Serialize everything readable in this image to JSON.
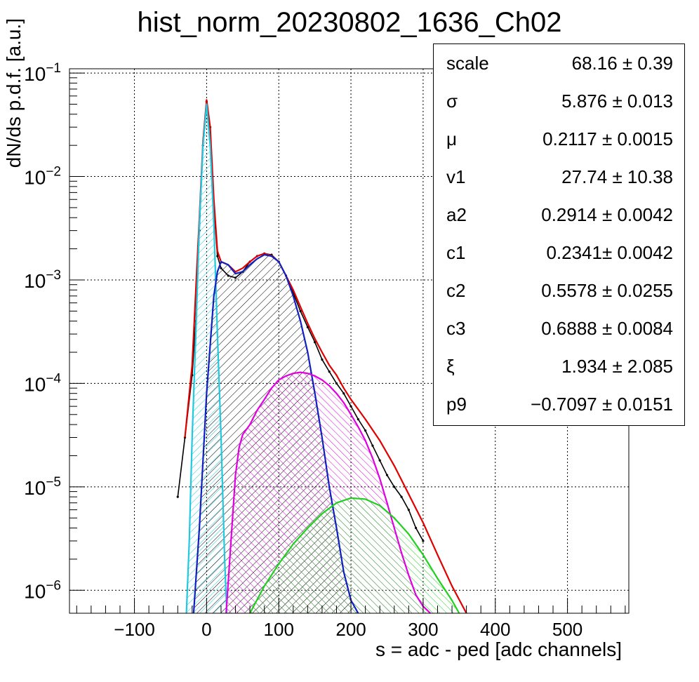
{
  "title": "hist_norm_20230802_1636_Ch02",
  "xlabel": "s = adc - ped [adc channels]",
  "ylabel": "dN/ds p.d.f. [a.u.]",
  "stats": [
    {
      "key": "scale",
      "value": "68.16 ± 0.39"
    },
    {
      "key": "σ",
      "value": "5.876 ± 0.013"
    },
    {
      "key": "μ",
      "value": "0.2117 ± 0.0015"
    },
    {
      "key": "v1",
      "value": "27.74 ± 10.38"
    },
    {
      "key": "a2",
      "value": "0.2914 ± 0.0042"
    },
    {
      "key": "c1",
      "value": "0.2341± 0.0042"
    },
    {
      "key": "c2",
      "value": "0.5578 ± 0.0255"
    },
    {
      "key": "c3",
      "value": "0.6888 ± 0.0084"
    },
    {
      "key": "ξ",
      "value": "1.934 ± 2.085"
    },
    {
      "key": "p9",
      "value": "−0.7097 ± 0.0151"
    }
  ],
  "chart_data": {
    "type": "line",
    "yscale": "log",
    "xlim": [
      -190,
      585
    ],
    "ylim": [
      6e-07,
      0.11
    ],
    "grid": true,
    "x_ticks": [
      -100,
      0,
      100,
      200,
      300,
      400,
      500
    ],
    "x_tick_labels": [
      "−100",
      "0",
      "100",
      "200",
      "300",
      "400",
      "500"
    ],
    "y_ticks": [
      1e-06,
      1e-05,
      0.0001,
      0.001,
      0.01,
      0.1
    ],
    "y_tick_labels": [
      [
        "10",
        "−6"
      ],
      [
        "10",
        "−5"
      ],
      [
        "10",
        "−4"
      ],
      [
        "10",
        "−3"
      ],
      [
        "10",
        "−2"
      ],
      [
        "10",
        "−1"
      ]
    ],
    "colors": {
      "data": "#000000",
      "total": "#e00000",
      "pedestal": "#20c8e0",
      "pe1": "#1020c0",
      "pe2": "#e000e0",
      "pe3": "#20d020"
    },
    "histogram": {
      "x": [
        -40,
        -30,
        -20,
        -15,
        -10,
        -5,
        0,
        5,
        10,
        15,
        20,
        30,
        40,
        50,
        60,
        70,
        80,
        90,
        100,
        110,
        120,
        130,
        140,
        150,
        160,
        170,
        180,
        190,
        200,
        210,
        220,
        230,
        240,
        250,
        260,
        270,
        280,
        290,
        300
      ],
      "y": [
        8e-06,
        3e-05,
        0.00012,
        0.0004,
        0.003,
        0.02,
        0.053,
        0.03,
        0.005,
        0.0017,
        0.0013,
        0.0011,
        0.00105,
        0.0012,
        0.0015,
        0.0017,
        0.0018,
        0.00175,
        0.0015,
        0.0011,
        0.00075,
        0.0005,
        0.00035,
        0.00025,
        0.00017,
        0.00013,
        0.0001,
        8e-05,
        6e-05,
        4.5e-05,
        3.5e-05,
        2.5e-05,
        1.8e-05,
        1.3e-05,
        1e-05,
        8e-06,
        6e-06,
        4e-06,
        3e-06
      ]
    },
    "series": [
      {
        "component": "total",
        "x": [
          -30,
          -20,
          -10,
          -5,
          0,
          5,
          10,
          15,
          20,
          30,
          40,
          50,
          60,
          70,
          80,
          90,
          100,
          110,
          120,
          130,
          140,
          150,
          160,
          170,
          180,
          190,
          200,
          220,
          240,
          260,
          280,
          300,
          320,
          340,
          360
        ],
        "y": [
          3e-05,
          0.00015,
          0.004,
          0.022,
          0.055,
          0.03,
          0.006,
          0.0019,
          0.0015,
          0.0014,
          0.0012,
          0.0013,
          0.0015,
          0.0017,
          0.0018,
          0.00172,
          0.0015,
          0.0011,
          0.0008,
          0.00055,
          0.00038,
          0.00027,
          0.0002,
          0.00015,
          0.00012,
          9e-05,
          7e-05,
          4.5e-05,
          2.8e-05,
          1.6e-05,
          8.5e-06,
          4.5e-06,
          2.2e-06,
          1.1e-06,
          5.5e-07
        ]
      },
      {
        "component": "pedestal",
        "x": [
          -28,
          -24,
          -20,
          -15,
          -10,
          -5,
          0,
          5,
          10,
          15,
          20,
          25,
          28
        ],
        "y": [
          6e-07,
          3e-06,
          3e-05,
          0.0003,
          0.0035,
          0.02,
          0.05,
          0.02,
          0.0035,
          0.0003,
          3e-05,
          2e-06,
          6e-07
        ]
      },
      {
        "component": "pe1",
        "x": [
          -18,
          -10,
          0,
          10,
          15,
          20,
          30,
          40,
          50,
          60,
          70,
          80,
          90,
          100,
          110,
          120,
          130,
          140,
          150,
          160,
          170,
          180,
          190,
          200,
          210
        ],
        "y": [
          6e-07,
          4e-06,
          8e-05,
          0.0007,
          0.0012,
          0.0015,
          0.0014,
          0.00115,
          0.0012,
          0.0014,
          0.0016,
          0.00175,
          0.0017,
          0.0015,
          0.0011,
          0.0007,
          0.0004,
          0.0002,
          8e-05,
          3e-05,
          1e-05,
          4e-06,
          1.5e-06,
          8e-07,
          6e-07
        ]
      },
      {
        "component": "pe2",
        "x": [
          27,
          30,
          35,
          40,
          45,
          50,
          60,
          70,
          80,
          90,
          100,
          110,
          120,
          130,
          140,
          150,
          160,
          170,
          180,
          190,
          200,
          210,
          220,
          230,
          240,
          250,
          260,
          270,
          280,
          290,
          300,
          310
        ],
        "y": [
          6e-07,
          1.2e-06,
          4e-06,
          1.3e-05,
          2.4e-05,
          3.2e-05,
          4e-05,
          5.5e-05,
          7e-05,
          9e-05,
          0.000108,
          0.000118,
          0.000125,
          0.000128,
          0.000125,
          0.000118,
          0.000108,
          9.5e-05,
          8e-05,
          6.5e-05,
          5e-05,
          3.8e-05,
          2.8e-05,
          1.9e-05,
          1.2e-05,
          7e-06,
          4e-06,
          2.3e-06,
          1.4e-06,
          9e-07,
          7e-07,
          6e-07
        ]
      },
      {
        "component": "pe3",
        "x": [
          60,
          80,
          100,
          120,
          140,
          160,
          180,
          200,
          220,
          240,
          260,
          280,
          300,
          320,
          340,
          350
        ],
        "y": [
          6e-07,
          1.1e-06,
          1.8e-06,
          2.8e-06,
          4e-06,
          5.5e-06,
          7e-06,
          7.8e-06,
          7.6e-06,
          6.6e-06,
          5e-06,
          3.5e-06,
          2.2e-06,
          1.3e-06,
          8e-07,
          6e-07
        ]
      }
    ]
  }
}
